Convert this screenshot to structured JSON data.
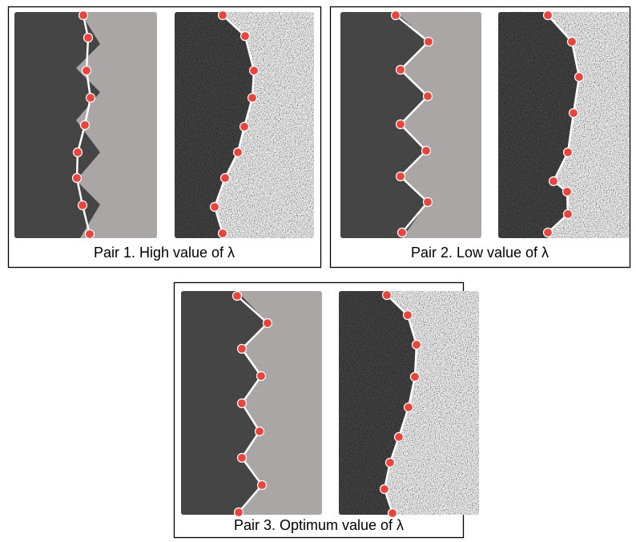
{
  "panels": [
    {
      "caption": "Pair 1. High value of λ"
    },
    {
      "caption": "Pair 2. Low value of λ"
    },
    {
      "caption": "Pair 3. Optimum value of λ"
    }
  ]
}
